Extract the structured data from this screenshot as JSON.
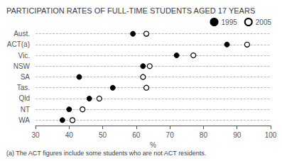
{
  "chart_data": {
    "type": "scatter",
    "orientation": "horizontal",
    "title": "PARTICIPATION RATES OF FULL-TIME STUDENTS AGED 17 YEARS",
    "footnote": "(a) The ACT figures include some students who are not ACT residents.",
    "xlabel": "%",
    "xlim": [
      30,
      100
    ],
    "xticks": [
      30,
      40,
      50,
      60,
      70,
      80,
      90,
      100
    ],
    "categories": [
      "Aust.",
      "ACT(a)",
      "Vic.",
      "NSW",
      "SA",
      "Tas.",
      "Qld",
      "NT",
      "WA"
    ],
    "series": [
      {
        "name": "1995",
        "color": "#000000",
        "marker": "circle",
        "values": [
          59,
          87,
          72,
          62,
          43,
          53,
          46,
          40,
          38
        ]
      },
      {
        "name": "2005",
        "color": "#000000",
        "marker": "open circle",
        "values": [
          63,
          93,
          77,
          64,
          62,
          63,
          49,
          44,
          41
        ]
      }
    ],
    "grid": true,
    "legend": "top right"
  }
}
